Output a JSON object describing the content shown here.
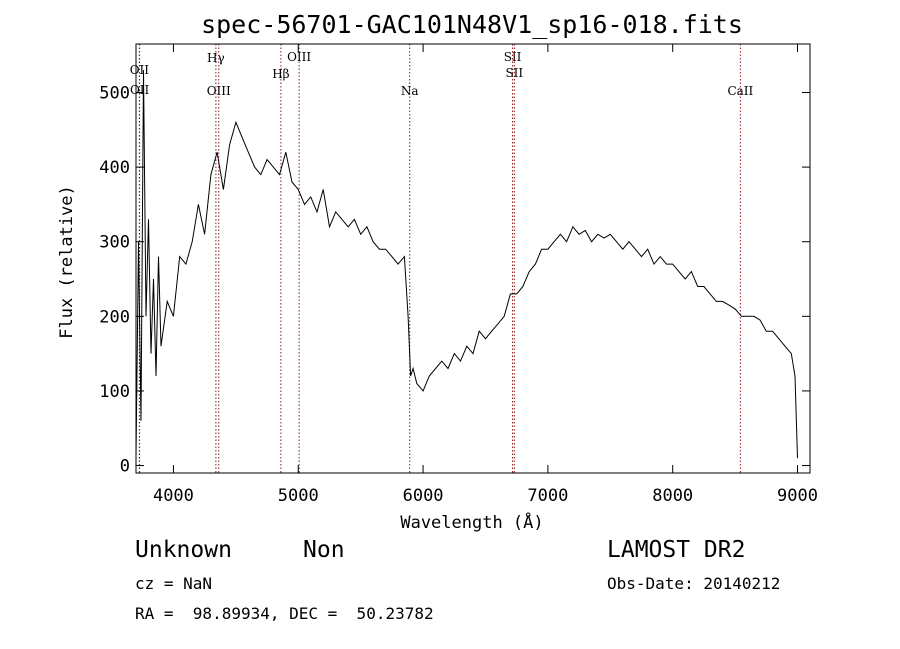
{
  "chart_data": {
    "type": "line",
    "title": "spec-56701-GAC101N48V1_sp16-018.fits",
    "xlabel": "Wavelength (Å)",
    "ylabel": "Flux (relative)",
    "xlim": [
      3700,
      9100
    ],
    "ylim": [
      -10,
      565
    ],
    "xticks": [
      4000,
      5000,
      6000,
      7000,
      8000,
      9000
    ],
    "yticks": [
      0,
      100,
      200,
      300,
      400,
      500
    ],
    "series": [
      {
        "x": [
          3700,
          3720,
          3740,
          3760,
          3780,
          3800,
          3820,
          3840,
          3860,
          3880,
          3900,
          3950,
          4000,
          4050,
          4100,
          4150,
          4200,
          4250,
          4300,
          4350,
          4400,
          4450,
          4500,
          4550,
          4600,
          4650,
          4700,
          4750,
          4800,
          4850,
          4900,
          4950,
          5000,
          5050,
          5100,
          5150,
          5200,
          5250,
          5300,
          5350,
          5400,
          5450,
          5500,
          5550,
          5600,
          5650,
          5700,
          5750,
          5800,
          5850,
          5880,
          5900,
          5920,
          5950,
          6000,
          6050,
          6100,
          6150,
          6200,
          6250,
          6300,
          6350,
          6400,
          6450,
          6500,
          6550,
          6600,
          6650,
          6700,
          6750,
          6800,
          6850,
          6900,
          6950,
          7000,
          7050,
          7100,
          7150,
          7200,
          7250,
          7300,
          7350,
          7400,
          7450,
          7500,
          7550,
          7600,
          7650,
          7700,
          7750,
          7800,
          7850,
          7900,
          7950,
          8000,
          8050,
          8100,
          8150,
          8200,
          8250,
          8300,
          8350,
          8400,
          8450,
          8500,
          8550,
          8600,
          8650,
          8700,
          8750,
          8800,
          8850,
          8900,
          8950,
          8980,
          9000
        ],
        "y": [
          10,
          300,
          60,
          530,
          200,
          330,
          150,
          250,
          120,
          280,
          160,
          220,
          200,
          280,
          270,
          300,
          350,
          310,
          390,
          420,
          370,
          430,
          460,
          440,
          420,
          400,
          390,
          410,
          400,
          390,
          420,
          380,
          370,
          350,
          360,
          340,
          370,
          320,
          340,
          330,
          320,
          330,
          310,
          320,
          300,
          290,
          290,
          280,
          270,
          280,
          200,
          120,
          130,
          110,
          100,
          120,
          130,
          140,
          130,
          150,
          140,
          160,
          150,
          180,
          170,
          180,
          190,
          200,
          230,
          230,
          240,
          260,
          270,
          290,
          290,
          300,
          310,
          300,
          320,
          310,
          315,
          300,
          310,
          305,
          310,
          300,
          290,
          300,
          290,
          280,
          290,
          270,
          280,
          270,
          270,
          260,
          250,
          260,
          240,
          240,
          230,
          220,
          220,
          215,
          210,
          200,
          200,
          200,
          195,
          180,
          180,
          170,
          160,
          150,
          120,
          10
        ]
      }
    ],
    "emission_lines": [
      {
        "label": "OII",
        "x": 3727
      },
      {
        "label": "OII",
        "x": 3729
      },
      {
        "label": "Hγ",
        "x": 4340
      },
      {
        "label": "OIII",
        "x": 4363
      },
      {
        "label": "Hβ",
        "x": 4861
      },
      {
        "label": "OIII",
        "x": 5007
      },
      {
        "label": "Na",
        "x": 5893
      },
      {
        "label": "SII",
        "x": 6717
      },
      {
        "label": "SII",
        "x": 6731
      },
      {
        "label": "CaII",
        "x": 8542
      }
    ],
    "colors": {
      "spectrum": "#000000",
      "lines": "#8b1a1a"
    }
  },
  "info": {
    "object_class": "Unknown",
    "subclass": "Non",
    "survey": "LAMOST DR2",
    "cz": "cz = NaN",
    "obs_date": "Obs-Date: 20140212",
    "coords": "RA =  98.89934, DEC =  50.23782"
  }
}
